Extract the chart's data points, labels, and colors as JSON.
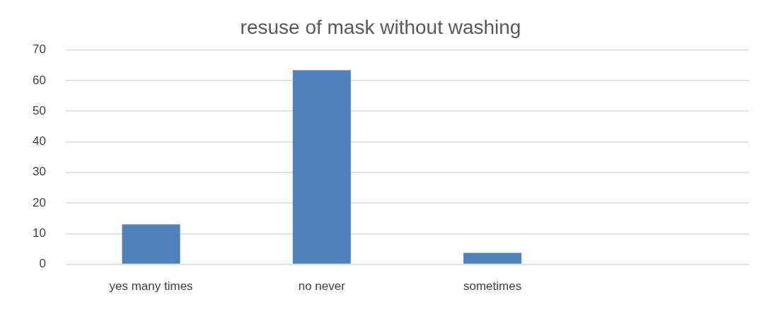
{
  "chart_data": {
    "type": "bar",
    "title": "resuse of mask without washing",
    "categories": [
      "yes many times",
      "no never",
      "sometimes",
      null
    ],
    "values": [
      13,
      63.4,
      3.7,
      null
    ],
    "color": "#4f81bd",
    "ylim": [
      0,
      70
    ],
    "yticks": [
      0,
      10,
      20,
      30,
      40,
      50,
      60,
      70
    ],
    "grid": "y",
    "legend": false
  }
}
